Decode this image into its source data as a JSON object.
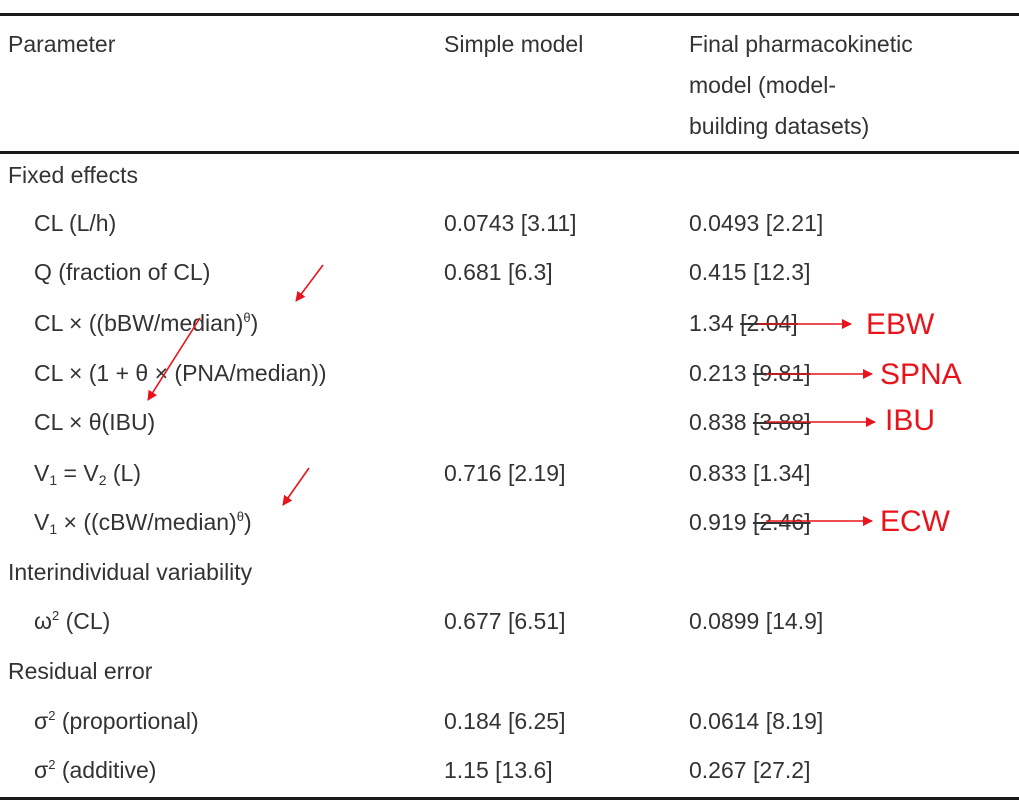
{
  "header": {
    "col1": "Parameter",
    "col2": "Simple model",
    "col3_lines": [
      "Final pharmacokinetic",
      "model (model-",
      "building datasets)"
    ]
  },
  "sections": {
    "fixed": "Fixed effects",
    "iiv": "Interindividual variability",
    "residual": "Residual error"
  },
  "rows": {
    "cl": {
      "param": "CL (L/h)",
      "simple": "0.0743 [3.11]",
      "final": "0.0493 [2.21]"
    },
    "q": {
      "param": "Q (fraction of CL)",
      "simple": "0.681 [6.3]",
      "final": "0.415 [12.3]"
    },
    "cl_bbw": {
      "param_pre": "CL × ((bBW/median)",
      "param_sup": "θ",
      "param_post": ")",
      "final_value": "1.34",
      "final_struck": "[2.04]"
    },
    "cl_pna": {
      "param": "CL × (1 + θ × (PNA/median))",
      "final_value": "0.213",
      "final_struck": "[9.81]"
    },
    "cl_ibu": {
      "param": "CL × θ(IBU)",
      "final_value": "0.838",
      "final_struck": "[3.88]"
    },
    "v": {
      "param_a": "V",
      "sub_a": "1",
      "param_b": " = V",
      "sub_b": "2",
      "param_c": " (L)",
      "simple": "0.716 [2.19]",
      "final": "0.833 [1.34]"
    },
    "v_cbw": {
      "param_a": "V",
      "sub_a": "1",
      "param_b": " × ((cBW/median)",
      "param_sup": "θ",
      "param_post": ")",
      "final_value": "0.919",
      "final_struck": "[2.46]"
    },
    "omega": {
      "param_a": "ω",
      "sup": "2",
      "param_b": " (CL)",
      "simple": "0.677 [6.51]",
      "final": "0.0899 [14.9]"
    },
    "sigma_prop": {
      "param_a": "σ",
      "sup": "2",
      "param_b": " (proportional)",
      "simple": "0.184 [6.25]",
      "final": "0.0614 [8.19]"
    },
    "sigma_add": {
      "param_a": "σ",
      "sup": "2",
      "param_b": " (additive)",
      "simple": "1.15 [13.6]",
      "final": "0.267 [27.2]"
    }
  },
  "annotations": {
    "ebw": "EBW",
    "spna": "SPNA",
    "ibu": "IBU",
    "ecw": "ECW",
    "color": "#e8141b"
  }
}
